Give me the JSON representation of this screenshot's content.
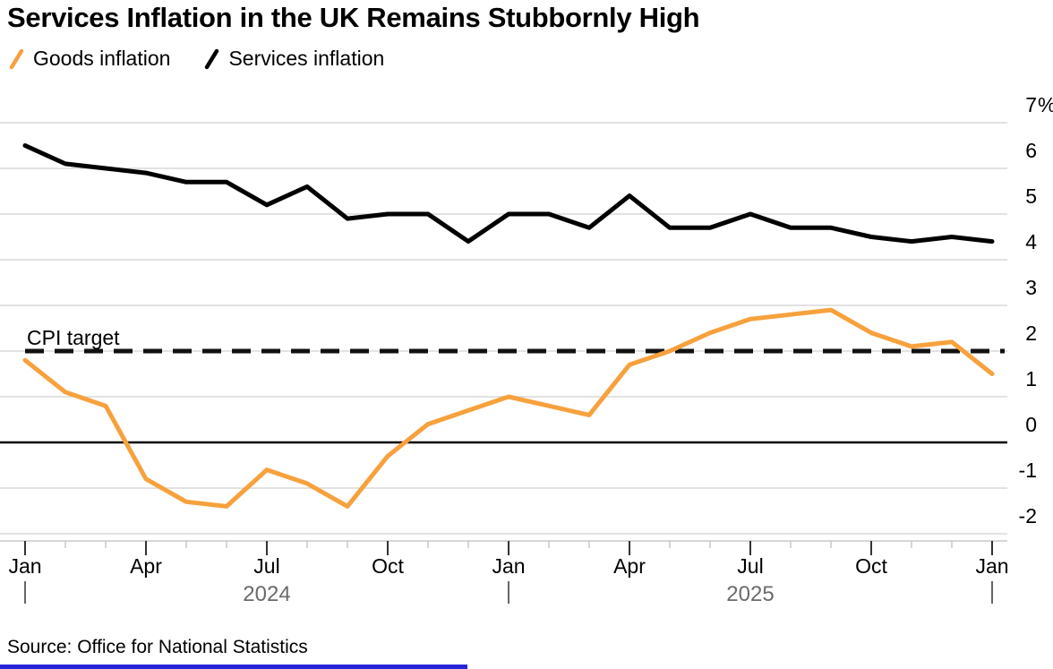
{
  "title": "Services Inflation in the UK Remains Stubbornly High",
  "legend": [
    {
      "label": "Goods inflation",
      "color": "#F7A13D",
      "swatch": "slash-icon"
    },
    {
      "label": "Services inflation",
      "color": "#000000",
      "swatch": "slash-icon"
    }
  ],
  "source": "Source: Office for National Statistics",
  "colors": {
    "goods_line": "#F7A13D",
    "services_line": "#000000",
    "gridline": "#D9D9D9",
    "axis_line": "#C8C8C8",
    "major_tick": "#333333",
    "minor_tick": "#C8C8C8",
    "tick_label": "#000000",
    "year_text": "#6B6B6B",
    "year_bar": "#666666",
    "zero_line": "#000000",
    "cpi_dash": "#111111",
    "footer_bar": "#2626D8"
  },
  "chart_data": {
    "type": "line",
    "x": [
      "Jan 2024",
      "Feb 2024",
      "Mar 2024",
      "Apr 2024",
      "May 2024",
      "Jun 2024",
      "Jul 2024",
      "Aug 2024",
      "Sep 2024",
      "Oct 2024",
      "Nov 2024",
      "Dec 2024",
      "Jan 2025",
      "Feb 2025",
      "Mar 2025",
      "Apr 2025",
      "May 2025",
      "Jun 2025",
      "Jul 2025",
      "Aug 2025",
      "Sep 2025",
      "Oct 2025",
      "Nov 2025",
      "Dec 2025",
      "Jan 2026"
    ],
    "series": [
      {
        "name": "Goods inflation",
        "color": "#F7A13D",
        "values": [
          1.8,
          1.1,
          0.8,
          -0.8,
          -1.3,
          -1.4,
          -0.6,
          -0.9,
          -1.4,
          -0.3,
          0.4,
          0.7,
          1.0,
          0.8,
          0.6,
          1.7,
          2.0,
          2.4,
          2.7,
          2.8,
          2.9,
          2.4,
          2.1,
          2.2,
          1.5
        ]
      },
      {
        "name": "Services inflation",
        "color": "#000000",
        "values": [
          6.5,
          6.1,
          6.0,
          5.9,
          5.7,
          5.7,
          5.2,
          5.6,
          4.9,
          5.0,
          5.0,
          4.4,
          5.0,
          5.0,
          4.7,
          5.4,
          4.7,
          4.7,
          5.0,
          4.7,
          4.7,
          4.5,
          4.4,
          4.5,
          4.4
        ]
      }
    ],
    "ylim": [
      -2.5,
      7
    ],
    "yticks": [
      7,
      6,
      5,
      4,
      3,
      2,
      1,
      0,
      -1,
      -2
    ],
    "ytick_labels": [
      "7%",
      "6",
      "5",
      "4",
      "3",
      "2",
      "1",
      "0",
      "-1",
      "-2"
    ],
    "x_major_every": 3,
    "x_major_labels": [
      "Jan",
      "Apr",
      "Jul",
      "Oct",
      "Jan",
      "Apr",
      "Jul",
      "Oct",
      "Jan"
    ],
    "years": [
      {
        "label": "2024",
        "center_month_index": 6
      },
      {
        "label": "2025",
        "center_month_index": 18
      }
    ],
    "year_separator_month_indices": [
      0,
      12,
      24
    ],
    "reference_lines": [
      {
        "label": "CPI target",
        "value": 2,
        "style": "dashed"
      },
      {
        "label": "",
        "value": 0,
        "style": "solid"
      }
    ],
    "grid": "horizontal",
    "legend_position": "top-left",
    "xlabel": "",
    "ylabel": ""
  }
}
